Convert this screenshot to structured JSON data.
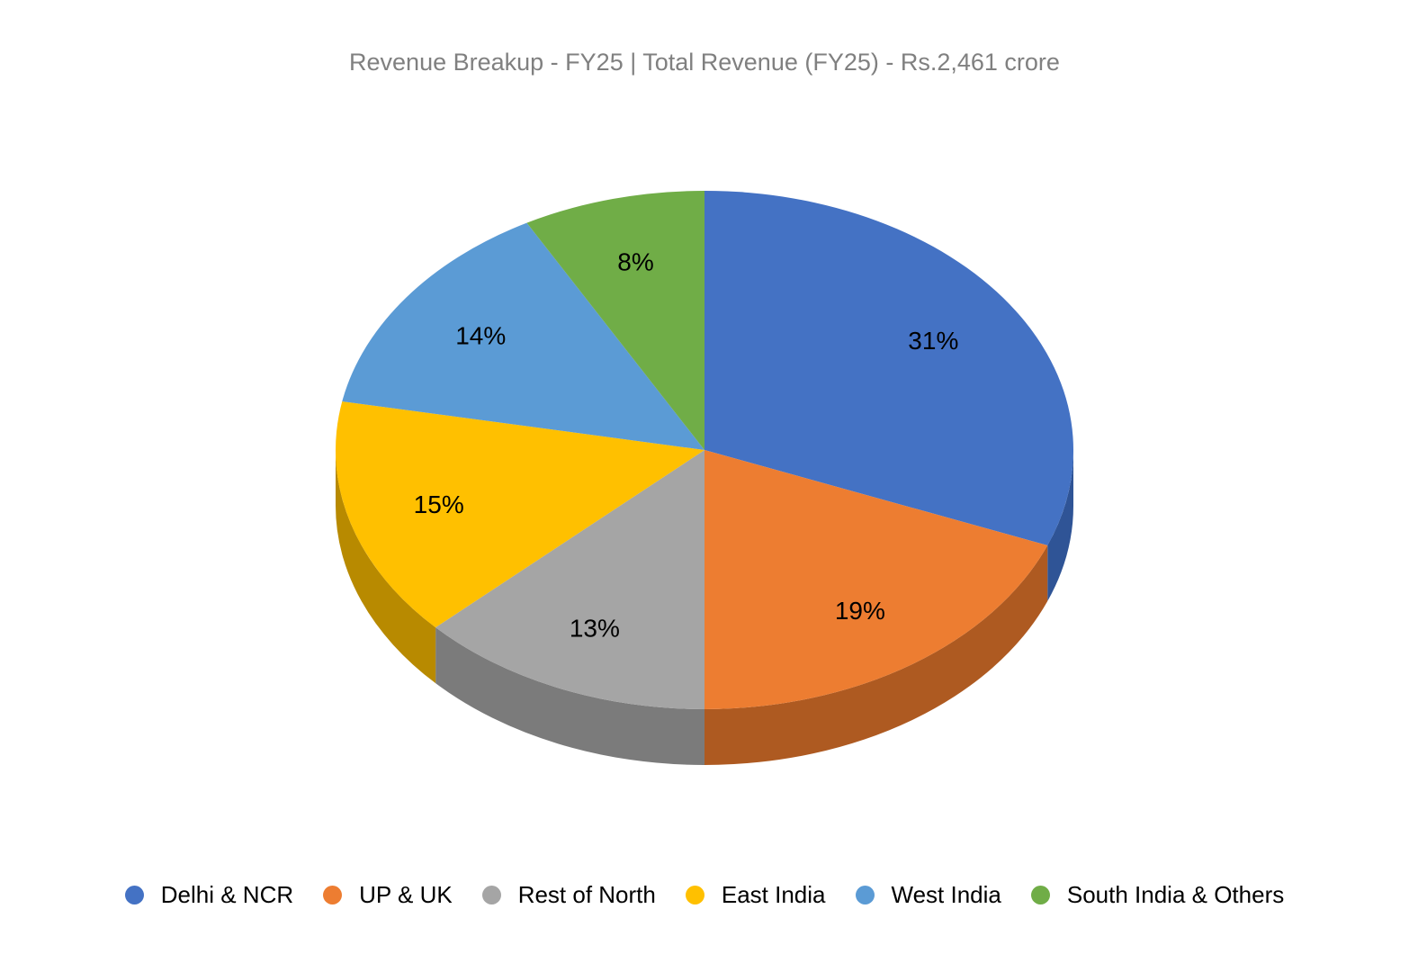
{
  "title": "Revenue Breakup - FY25 | Total Revenue (FY25) - Rs.2,461 crore",
  "chart_data": {
    "type": "pie",
    "style": "3d",
    "title": "Revenue Breakup - FY25 | Total Revenue (FY25) - Rs.2,461 crore",
    "total_revenue_text": "Total Revenue (FY25) - Rs.2,461 crore",
    "start_angle_deg": 0,
    "direction": "clockwise",
    "legend_position": "bottom",
    "unit": "percent",
    "title_color": "#808080",
    "data_label_color": "#000000",
    "slices": [
      {
        "label": "Delhi & NCR",
        "value": 31,
        "data_label": "31%",
        "color": "#4472C4",
        "side_color": "#2F5496"
      },
      {
        "label": "UP & UK",
        "value": 19,
        "data_label": "19%",
        "color": "#ED7D31",
        "side_color": "#AE5A21"
      },
      {
        "label": "Rest of North",
        "value": 13,
        "data_label": "13%",
        "color": "#A5A5A5",
        "side_color": "#7B7B7B"
      },
      {
        "label": "East India",
        "value": 15,
        "data_label": "15%",
        "color": "#FFC000",
        "side_color": "#B88A00"
      },
      {
        "label": "West India",
        "value": 14,
        "data_label": "14%",
        "color": "#5B9BD5",
        "side_color": "#41719C"
      },
      {
        "label": "South India & Others",
        "value": 8,
        "data_label": "8%",
        "color": "#70AD47",
        "side_color": "#507E32"
      }
    ]
  }
}
